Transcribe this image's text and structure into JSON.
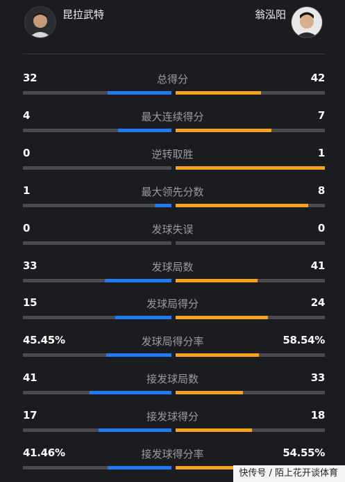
{
  "players": {
    "left": {
      "name": "昆拉武特",
      "avatar_icon": "player-avatar"
    },
    "right": {
      "name": "翁泓阳",
      "avatar_icon": "player-avatar"
    }
  },
  "colors": {
    "left_fill": "#1e7cf2",
    "right_fill": "#f7a31c",
    "track": "#4a4b50"
  },
  "stats": [
    {
      "label": "总得分",
      "left": "32",
      "right": "42",
      "left_frac": 0.43,
      "right_frac": 0.57
    },
    {
      "label": "最大连续得分",
      "left": "4",
      "right": "7",
      "left_frac": 0.36,
      "right_frac": 0.64
    },
    {
      "label": "逆转取胜",
      "left": "0",
      "right": "1",
      "left_frac": 0.0,
      "right_frac": 1.0
    },
    {
      "label": "最大领先分数",
      "left": "1",
      "right": "8",
      "left_frac": 0.11,
      "right_frac": 0.89
    },
    {
      "label": "发球失误",
      "left": "0",
      "right": "0",
      "left_frac": 0.0,
      "right_frac": 0.0
    },
    {
      "label": "发球局数",
      "left": "33",
      "right": "41",
      "left_frac": 0.45,
      "right_frac": 0.55
    },
    {
      "label": "发球局得分",
      "left": "15",
      "right": "24",
      "left_frac": 0.38,
      "right_frac": 0.62
    },
    {
      "label": "发球局得分率",
      "left": "45.45%",
      "right": "58.54%",
      "left_frac": 0.44,
      "right_frac": 0.56
    },
    {
      "label": "接发球局数",
      "left": "41",
      "right": "33",
      "left_frac": 0.55,
      "right_frac": 0.45
    },
    {
      "label": "接发球得分",
      "left": "17",
      "right": "18",
      "left_frac": 0.49,
      "right_frac": 0.51
    },
    {
      "label": "接发球得分率",
      "left": "41.46%",
      "right": "54.55%",
      "left_frac": 0.43,
      "right_frac": 0.57
    }
  ],
  "watermark": "快传号 / 陌上花开谈体育"
}
